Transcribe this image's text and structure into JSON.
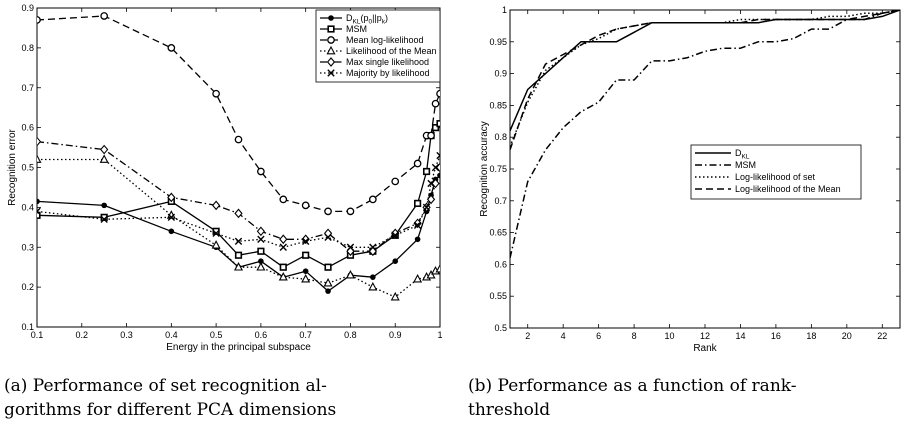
{
  "chart_data": [
    {
      "type": "line",
      "xlabel": "Energy in the principal subspace",
      "ylabel": "Recognition error",
      "xlim": [
        0.1,
        1.0
      ],
      "ylim": [
        0.1,
        0.9
      ],
      "xticks": [
        "0.1",
        "0.2",
        "0.3",
        "0.4",
        "0.5",
        "0.6",
        "0.7",
        "0.8",
        "0.9",
        "1"
      ],
      "yticks": [
        "0.1",
        "0.2",
        "0.3",
        "0.4",
        "0.5",
        "0.6",
        "0.7",
        "0.8",
        "0.9"
      ],
      "grid": false,
      "legend_position": "top-right",
      "series": [
        {
          "name": "D_KL(p_0||p_k)",
          "label_main": "D",
          "label_sub": "KL",
          "label_rest": "(p",
          "label_sub2": "0",
          "label_mid": "||p",
          "label_sub3": "k",
          "label_end": ")",
          "line": "solid",
          "marker": "filled-circle",
          "x": [
            0.1,
            0.25,
            0.4,
            0.5,
            0.55,
            0.6,
            0.65,
            0.7,
            0.75,
            0.8,
            0.85,
            0.9,
            0.95,
            0.97,
            0.98,
            0.99,
            1.0
          ],
          "y": [
            0.415,
            0.405,
            0.34,
            0.3,
            0.25,
            0.265,
            0.225,
            0.24,
            0.19,
            0.23,
            0.225,
            0.265,
            0.32,
            0.39,
            0.43,
            0.47,
            0.48
          ]
        },
        {
          "name": "MSM",
          "line": "solid",
          "marker": "square",
          "x": [
            0.1,
            0.25,
            0.4,
            0.5,
            0.55,
            0.6,
            0.65,
            0.7,
            0.75,
            0.8,
            0.85,
            0.9,
            0.95,
            0.97,
            0.98,
            0.99,
            1.0
          ],
          "y": [
            0.38,
            0.375,
            0.415,
            0.34,
            0.28,
            0.29,
            0.25,
            0.28,
            0.25,
            0.28,
            0.29,
            0.33,
            0.41,
            0.49,
            0.58,
            0.6,
            0.61
          ]
        },
        {
          "name": "Mean log-likelihood",
          "line": "dashed",
          "marker": "open-circle",
          "x": [
            0.1,
            0.25,
            0.4,
            0.5,
            0.55,
            0.6,
            0.65,
            0.7,
            0.75,
            0.8,
            0.85,
            0.9,
            0.95,
            0.97,
            0.98,
            0.99,
            1.0
          ],
          "y": [
            0.87,
            0.88,
            0.8,
            0.685,
            0.57,
            0.49,
            0.42,
            0.405,
            0.39,
            0.39,
            0.42,
            0.465,
            0.51,
            0.58,
            0.58,
            0.66,
            0.685
          ]
        },
        {
          "name": "Likelihood of the Mean",
          "line": "dotted",
          "marker": "triangle",
          "x": [
            0.1,
            0.25,
            0.4,
            0.5,
            0.55,
            0.6,
            0.65,
            0.7,
            0.75,
            0.8,
            0.85,
            0.9,
            0.95,
            0.97,
            0.98,
            0.99,
            1.0
          ],
          "y": [
            0.52,
            0.52,
            0.38,
            0.305,
            0.25,
            0.25,
            0.225,
            0.22,
            0.21,
            0.23,
            0.2,
            0.175,
            0.22,
            0.225,
            0.23,
            0.24,
            0.245
          ]
        },
        {
          "name": "Max single likelihood",
          "line": "dashdot",
          "marker": "diamond",
          "x": [
            0.1,
            0.25,
            0.4,
            0.5,
            0.55,
            0.6,
            0.65,
            0.7,
            0.75,
            0.8,
            0.85,
            0.9,
            0.95,
            0.97,
            0.98,
            0.99,
            1.0
          ],
          "y": [
            0.565,
            0.545,
            0.425,
            0.405,
            0.385,
            0.34,
            0.32,
            0.32,
            0.335,
            0.29,
            0.29,
            0.335,
            0.36,
            0.4,
            0.42,
            0.46,
            0.5
          ]
        },
        {
          "name": "Majority by likelihood",
          "line": "dotted",
          "marker": "x",
          "x": [
            0.1,
            0.25,
            0.4,
            0.5,
            0.55,
            0.6,
            0.65,
            0.7,
            0.75,
            0.8,
            0.85,
            0.9,
            0.95,
            0.97,
            0.98,
            0.99,
            1.0
          ],
          "y": [
            0.39,
            0.37,
            0.375,
            0.335,
            0.315,
            0.32,
            0.3,
            0.315,
            0.325,
            0.3,
            0.3,
            0.33,
            0.355,
            0.4,
            0.46,
            0.5,
            0.53
          ]
        }
      ]
    },
    {
      "type": "line",
      "xlabel": "Rank",
      "ylabel": "Recognition accuracy",
      "xlim": [
        1,
        23
      ],
      "ylim": [
        0.5,
        1.0
      ],
      "xticks": [
        "2",
        "4",
        "6",
        "8",
        "10",
        "12",
        "14",
        "16",
        "18",
        "20",
        "22"
      ],
      "yticks": [
        "0.5",
        "0.55",
        "0.6",
        "0.65",
        "0.7",
        "0.75",
        "0.8",
        "0.85",
        "0.9",
        "0.95",
        "1"
      ],
      "grid": false,
      "legend_position": "center-right",
      "series": [
        {
          "name": "D_KL",
          "label_main": "D",
          "label_sub": "KL",
          "line": "solid",
          "x": [
            1,
            2,
            3,
            4,
            5,
            6,
            7,
            8,
            9,
            10,
            11,
            12,
            13,
            14,
            15,
            16,
            17,
            18,
            19,
            20,
            21,
            22,
            23
          ],
          "y": [
            0.81,
            0.875,
            0.9,
            0.925,
            0.95,
            0.95,
            0.95,
            0.965,
            0.98,
            0.98,
            0.98,
            0.98,
            0.98,
            0.98,
            0.98,
            0.985,
            0.985,
            0.985,
            0.985,
            0.985,
            0.985,
            0.99,
            1.0
          ]
        },
        {
          "name": "MSM",
          "line": "dashdot",
          "x": [
            1,
            2,
            3,
            4,
            5,
            6,
            7,
            8,
            9,
            10,
            11,
            12,
            13,
            14,
            15,
            16,
            17,
            18,
            19,
            20,
            21,
            22,
            23
          ],
          "y": [
            0.61,
            0.73,
            0.78,
            0.815,
            0.84,
            0.855,
            0.89,
            0.89,
            0.92,
            0.92,
            0.925,
            0.935,
            0.94,
            0.94,
            0.95,
            0.95,
            0.955,
            0.97,
            0.97,
            0.985,
            0.985,
            0.995,
            1.0
          ]
        },
        {
          "name": "Log-likelihood of set",
          "line": "dotted",
          "x": [
            1,
            2,
            3,
            4,
            5,
            6,
            7,
            8,
            9,
            10,
            11,
            12,
            13,
            14,
            15,
            16,
            17,
            18,
            19,
            20,
            21,
            22,
            23
          ],
          "y": [
            0.785,
            0.855,
            0.905,
            0.925,
            0.945,
            0.955,
            0.97,
            0.975,
            0.98,
            0.98,
            0.98,
            0.98,
            0.98,
            0.985,
            0.985,
            0.985,
            0.985,
            0.985,
            0.99,
            0.99,
            0.995,
            0.995,
            1.0
          ]
        },
        {
          "name": "Log-likelihood of the Mean",
          "line": "dashed",
          "x": [
            1,
            2,
            3,
            4,
            5,
            6,
            7,
            8,
            9,
            10,
            11,
            12,
            13,
            14,
            15,
            16,
            17,
            18,
            19,
            20,
            21,
            22,
            23
          ],
          "y": [
            0.78,
            0.86,
            0.915,
            0.93,
            0.945,
            0.96,
            0.97,
            0.975,
            0.98,
            0.98,
            0.98,
            0.98,
            0.98,
            0.98,
            0.985,
            0.985,
            0.985,
            0.985,
            0.985,
            0.985,
            0.99,
            0.995,
            1.0
          ]
        }
      ]
    }
  ],
  "captions": [
    {
      "line1": "(a) Performance of set recognition al-",
      "line2": "gorithms for different PCA dimensions"
    },
    {
      "line1": "(b) Performance as a function of rank-",
      "line2": "threshold"
    }
  ]
}
